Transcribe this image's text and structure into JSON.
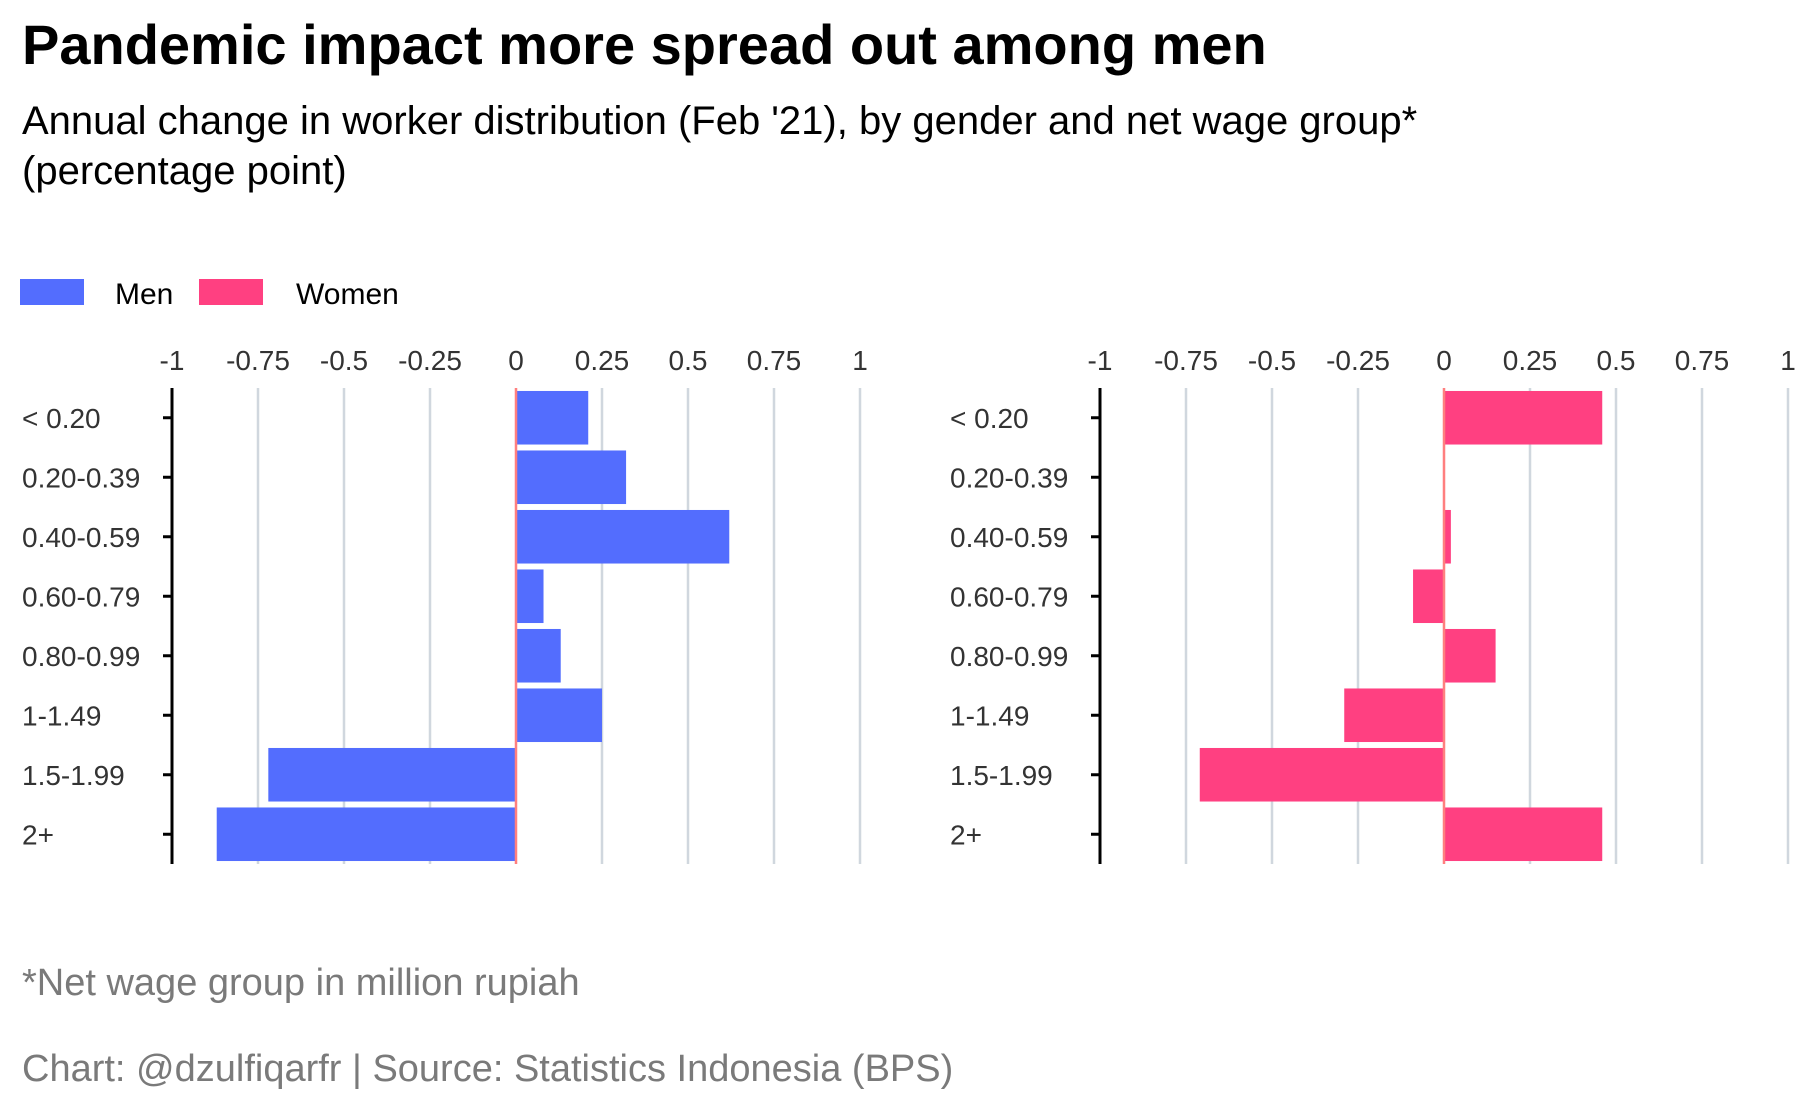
{
  "title": "Pandemic impact more spread out among men",
  "subtitle_line1": "Annual change in worker distribution (Feb '21), by gender and net wage group*",
  "subtitle_line2": "(percentage point)",
  "legend": [
    {
      "label": "Men",
      "color": "#536DFE"
    },
    {
      "label": "Women",
      "color": "#FF4081"
    }
  ],
  "caption": "*Net wage group in million rupiah",
  "credit": "Chart: @dzulfiqarfr | Source: Statistics Indonesia (BPS)",
  "chart_data": {
    "type": "bar",
    "orientation": "horizontal",
    "categories": [
      "< 0.20",
      "0.20-0.39",
      "0.40-0.59",
      "0.60-0.79",
      "0.80-0.99",
      "1-1.49",
      "1.5-1.99",
      "2+"
    ],
    "xlim": [
      -1,
      1
    ],
    "xticks": [
      -1,
      -0.75,
      -0.5,
      -0.25,
      0,
      0.25,
      0.5,
      0.75,
      1
    ],
    "xtick_labels": [
      "-1",
      "-0.75",
      "-0.5",
      "-0.25",
      "0",
      "0.25",
      "0.5",
      "0.75",
      "1"
    ],
    "zero_line_color": "#FF7F7F",
    "grid": true,
    "series": [
      {
        "name": "Men",
        "color": "#536DFE",
        "values": [
          0.21,
          0.32,
          0.62,
          0.08,
          0.13,
          0.25,
          -0.72,
          -0.87
        ]
      },
      {
        "name": "Women",
        "color": "#FF4081",
        "values": [
          0.46,
          0.0,
          0.02,
          -0.09,
          0.15,
          -0.29,
          -0.71,
          0.46
        ]
      }
    ]
  }
}
